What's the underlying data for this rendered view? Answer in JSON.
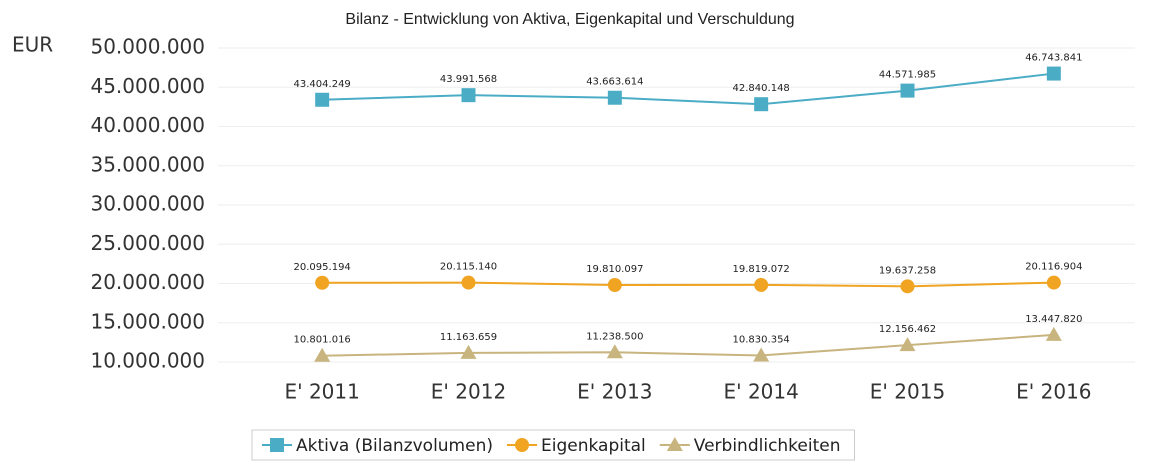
{
  "chart_data": {
    "type": "line",
    "title": "Bilanz - Entwicklung von Aktiva, Eigenkapital und Verschuldung",
    "y_label": "EUR",
    "categories": [
      "E' 2011",
      "E' 2012",
      "E' 2013",
      "E' 2014",
      "E' 2015",
      "E' 2016"
    ],
    "series": [
      {
        "name": "Aktiva (Bilanzvolumen)",
        "color": "#4bacc6",
        "marker": "square",
        "values": [
          43404249,
          43991568,
          43663614,
          42840148,
          44571985,
          46743841
        ],
        "value_labels": [
          "43.404.249",
          "43.991.568",
          "43.663.614",
          "42.840.148",
          "44.571.985",
          "46.743.841"
        ]
      },
      {
        "name": "Eigenkapital",
        "color": "#f0a422",
        "marker": "circle",
        "values": [
          20095194,
          20115140,
          19810097,
          19819072,
          19637258,
          20116904
        ],
        "value_labels": [
          "20.095.194",
          "20.115.140",
          "19.810.097",
          "19.819.072",
          "19.637.258",
          "20.116.904"
        ]
      },
      {
        "name": "Verbindlichkeiten",
        "color": "#c8b47e",
        "marker": "triangle",
        "values": [
          10801016,
          11163659,
          11238500,
          10830354,
          12156462,
          13447820
        ],
        "value_labels": [
          "10.801.016",
          "11.163.659",
          "11.238.500",
          "10.830.354",
          "12.156.462",
          "13.447.820"
        ]
      }
    ],
    "ylim": [
      10000000,
      50000000
    ],
    "yticks": [
      {
        "value": 10000000,
        "label": "10.000.000"
      },
      {
        "value": 15000000,
        "label": "15.000.000"
      },
      {
        "value": 20000000,
        "label": "20.000.000"
      },
      {
        "value": 25000000,
        "label": "25.000.000"
      },
      {
        "value": 30000000,
        "label": "30.000.000"
      },
      {
        "value": 35000000,
        "label": "35.000.000"
      },
      {
        "value": 40000000,
        "label": "40.000.000"
      },
      {
        "value": 45000000,
        "label": "45.000.000"
      },
      {
        "value": 50000000,
        "label": "50.000.000"
      }
    ],
    "grid": true,
    "legend": "bottom"
  }
}
